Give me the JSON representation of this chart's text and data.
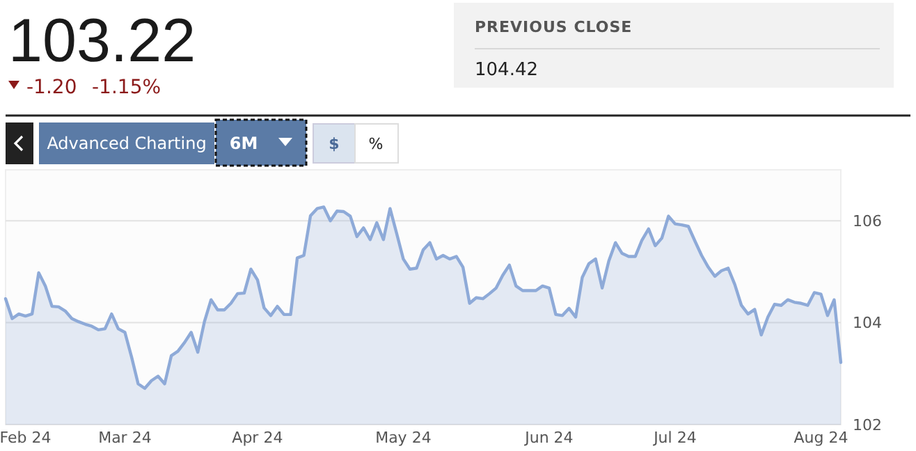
{
  "chart_data": {
    "type": "area",
    "categories": [
      null,
      null,
      null,
      "Feb 24",
      null,
      null,
      null,
      null,
      null,
      null,
      null,
      null,
      null,
      null,
      null,
      null,
      null,
      null,
      "Mar 24",
      null,
      null,
      null,
      null,
      null,
      null,
      null,
      null,
      null,
      null,
      null,
      null,
      null,
      null,
      null,
      null,
      null,
      null,
      null,
      "Apr 24",
      null,
      null,
      null,
      null,
      null,
      null,
      null,
      null,
      null,
      null,
      null,
      null,
      null,
      null,
      null,
      null,
      null,
      null,
      null,
      null,
      null,
      "May 24",
      null,
      null,
      null,
      null,
      null,
      null,
      null,
      null,
      null,
      null,
      null,
      null,
      null,
      null,
      null,
      null,
      null,
      null,
      null,
      null,
      null,
      "Jun 24",
      null,
      null,
      null,
      null,
      null,
      null,
      null,
      null,
      null,
      null,
      null,
      null,
      null,
      null,
      null,
      null,
      null,
      null,
      "Jul 24",
      null,
      null,
      null,
      null,
      null,
      null,
      null,
      null,
      null,
      null,
      null,
      null,
      null,
      null,
      null,
      null,
      null,
      null,
      null,
      null,
      null,
      "Aug 24",
      null,
      null,
      null
    ],
    "series": [
      {
        "color": "#8eaad8",
        "values": [
          104.47,
          104.08,
          104.17,
          104.13,
          104.17,
          104.98,
          104.72,
          104.32,
          104.31,
          104.23,
          104.08,
          104.02,
          103.97,
          103.93,
          103.86,
          103.88,
          104.17,
          103.88,
          103.81,
          103.33,
          102.8,
          102.71,
          102.86,
          102.95,
          102.8,
          103.35,
          103.44,
          103.61,
          103.81,
          103.42,
          104.02,
          104.45,
          104.25,
          104.25,
          104.38,
          104.57,
          104.58,
          105.05,
          104.84,
          104.29,
          104.14,
          104.32,
          104.16,
          104.16,
          105.27,
          105.32,
          106.1,
          106.24,
          106.27,
          106.0,
          106.19,
          106.18,
          106.09,
          105.69,
          105.86,
          105.63,
          105.96,
          105.63,
          106.24,
          105.75,
          105.25,
          105.05,
          105.07,
          105.43,
          105.57,
          105.25,
          105.32,
          105.25,
          105.3,
          105.09,
          104.38,
          104.49,
          104.47,
          104.57,
          104.68,
          104.93,
          105.13,
          104.72,
          104.63,
          104.63,
          104.63,
          104.72,
          104.68,
          104.16,
          104.14,
          104.28,
          104.11,
          104.89,
          105.16,
          105.25,
          104.68,
          105.21,
          105.57,
          105.36,
          105.3,
          105.3,
          105.62,
          105.84,
          105.51,
          105.66,
          106.09,
          105.94,
          105.92,
          105.89,
          105.6,
          105.32,
          105.09,
          104.91,
          105.02,
          105.07,
          104.75,
          104.34,
          104.17,
          104.26,
          103.76,
          104.11,
          104.36,
          104.34,
          104.45,
          104.4,
          104.38,
          104.34,
          104.59,
          104.56,
          104.14,
          104.45,
          103.22
        ]
      }
    ],
    "ylim": [
      102,
      107
    ],
    "yticks": [
      102,
      104,
      106
    ],
    "grid": "y",
    "annotations": [
      "103.22",
      "-1.20",
      "-1.15%",
      "PREVIOUS CLOSE",
      "104.42",
      "Advanced Charting",
      "6M",
      "$",
      "%"
    ]
  }
}
